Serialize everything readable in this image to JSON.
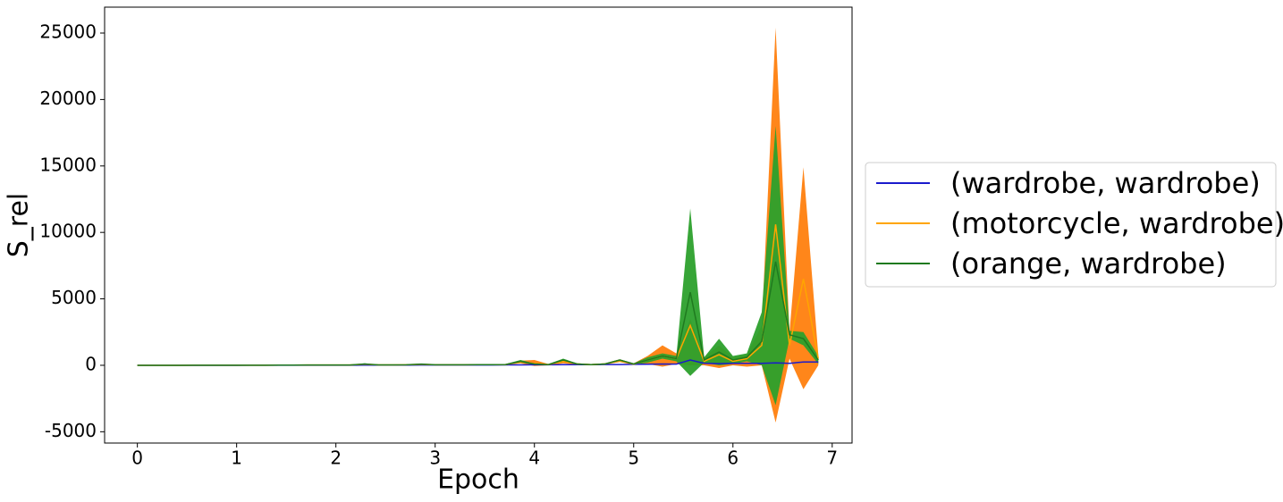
{
  "chart_data": {
    "type": "line_band",
    "x_label": "Epoch",
    "y_label": "S_rel",
    "x": [
      0,
      0.14,
      0.29,
      0.43,
      0.57,
      0.71,
      0.86,
      1,
      1.14,
      1.29,
      1.43,
      1.57,
      1.71,
      1.86,
      2,
      2.14,
      2.29,
      2.43,
      2.57,
      2.71,
      2.86,
      3,
      3.14,
      3.29,
      3.43,
      3.57,
      3.71,
      3.86,
      4,
      4.14,
      4.29,
      4.43,
      4.57,
      4.71,
      4.86,
      5,
      5.14,
      5.29,
      5.43,
      5.57,
      5.71,
      5.86,
      6,
      6.14,
      6.29,
      6.43,
      6.57,
      6.71,
      6.86
    ],
    "xlim": [
      -0.33,
      7.2
    ],
    "xticks": [
      0,
      1,
      2,
      3,
      4,
      5,
      6,
      7
    ],
    "ylim": [
      -5850,
      26950
    ],
    "yticks": [
      -5000,
      0,
      5000,
      10000,
      15000,
      20000,
      25000
    ],
    "legend_position": "right",
    "series": [
      {
        "name": "(wardrobe, wardrobe)",
        "color": "#1a1acc",
        "values": [
          0,
          0,
          0,
          0,
          0,
          0,
          0,
          0,
          5,
          5,
          5,
          10,
          10,
          10,
          10,
          10,
          15,
          15,
          15,
          15,
          20,
          20,
          20,
          20,
          25,
          25,
          30,
          30,
          40,
          40,
          50,
          50,
          50,
          60,
          60,
          70,
          80,
          100,
          90,
          400,
          150,
          120,
          150,
          150,
          150,
          180,
          150,
          250,
          250
        ]
      },
      {
        "name": "(motorcycle, wardrobe)",
        "color": "#ffa500",
        "band_color": "#ff7f0e",
        "values": [
          0,
          0,
          0,
          0,
          5,
          5,
          5,
          10,
          10,
          10,
          15,
          15,
          20,
          20,
          20,
          20,
          80,
          30,
          30,
          40,
          70,
          40,
          40,
          40,
          50,
          50,
          60,
          250,
          150,
          50,
          300,
          100,
          50,
          100,
          350,
          80,
          400,
          700,
          500,
          3000,
          300,
          800,
          300,
          500,
          1500,
          10600,
          1500,
          6500,
          500
        ],
        "upper": [
          0,
          0,
          0,
          0,
          10,
          10,
          10,
          20,
          20,
          20,
          30,
          30,
          40,
          40,
          40,
          40,
          120,
          50,
          50,
          60,
          100,
          60,
          60,
          60,
          80,
          80,
          100,
          350,
          400,
          100,
          450,
          150,
          100,
          150,
          450,
          150,
          700,
          1500,
          900,
          3500,
          600,
          1500,
          600,
          800,
          3000,
          25400,
          2500,
          14900,
          800
        ],
        "lower": [
          0,
          0,
          0,
          0,
          0,
          0,
          0,
          0,
          0,
          0,
          0,
          0,
          0,
          0,
          0,
          0,
          40,
          10,
          10,
          20,
          40,
          20,
          20,
          20,
          20,
          20,
          20,
          150,
          -50,
          0,
          150,
          50,
          0,
          50,
          250,
          20,
          100,
          -100,
          100,
          0,
          0,
          -200,
          0,
          -100,
          0,
          -4300,
          500,
          -1800,
          0
        ]
      },
      {
        "name": "(orange, wardrobe)",
        "color": "#1f7a1f",
        "band_color": "#2ca02c",
        "values": [
          0,
          0,
          0,
          0,
          5,
          5,
          5,
          10,
          10,
          10,
          15,
          15,
          20,
          20,
          20,
          20,
          100,
          30,
          30,
          40,
          90,
          40,
          40,
          40,
          50,
          50,
          60,
          300,
          100,
          50,
          400,
          100,
          50,
          100,
          400,
          100,
          400,
          700,
          500,
          5500,
          400,
          1000,
          400,
          600,
          1800,
          7800,
          2300,
          2000,
          400
        ],
        "upper": [
          0,
          0,
          0,
          0,
          10,
          10,
          10,
          20,
          20,
          20,
          30,
          30,
          40,
          40,
          40,
          40,
          150,
          50,
          50,
          60,
          130,
          60,
          60,
          60,
          80,
          80,
          100,
          400,
          150,
          100,
          500,
          150,
          100,
          150,
          450,
          150,
          600,
          900,
          700,
          11800,
          600,
          2000,
          700,
          900,
          4000,
          18000,
          2600,
          2500,
          700
        ],
        "lower": [
          0,
          0,
          0,
          0,
          0,
          0,
          0,
          0,
          0,
          0,
          0,
          0,
          0,
          0,
          0,
          0,
          50,
          10,
          10,
          20,
          50,
          20,
          20,
          20,
          20,
          20,
          20,
          200,
          50,
          0,
          300,
          50,
          0,
          50,
          300,
          50,
          200,
          500,
          300,
          -800,
          200,
          0,
          100,
          300,
          0,
          -3000,
          2000,
          1500,
          100
        ]
      }
    ]
  }
}
